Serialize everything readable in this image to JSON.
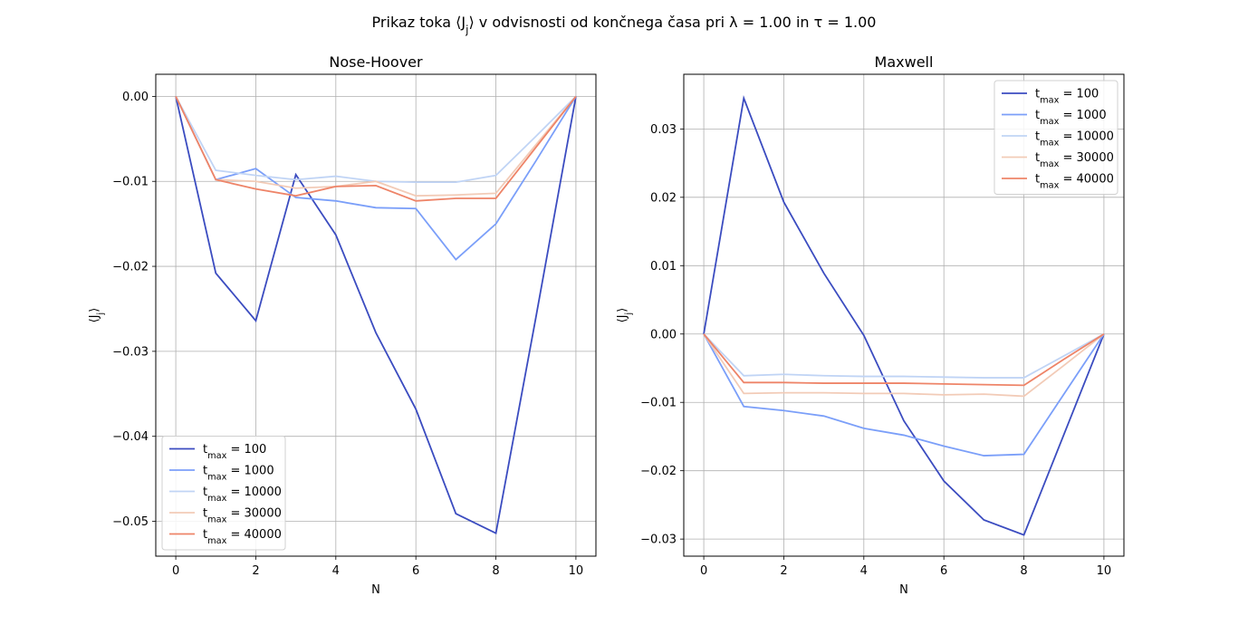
{
  "figure": {
    "suptitle": "Prikaz toka ⟨J_j⟩ v odvisnosti od končnega časa pri λ = 1.00 in τ = 1.00"
  },
  "chart_data": [
    {
      "type": "line",
      "title": "Nose-Hoover",
      "xlabel": "N",
      "ylabel": "⟨J_j⟩",
      "xlim": [
        -0.5,
        10.5
      ],
      "ylim": [
        -0.0541,
        0.0026
      ],
      "xticks": [
        0,
        2,
        4,
        6,
        8,
        10
      ],
      "yticks": [
        0.0,
        -0.01,
        -0.02,
        -0.03,
        -0.04,
        -0.05
      ],
      "ytick_labels": [
        "0.00",
        "−0.01",
        "−0.02",
        "−0.03",
        "−0.04",
        "−0.05"
      ],
      "grid": true,
      "legend_position": "lower-left",
      "x": [
        0,
        1,
        2,
        3,
        4,
        5,
        6,
        7,
        8,
        9,
        10
      ],
      "series": [
        {
          "name": "t_max = 100",
          "color": "#3b4cc0",
          "values": [
            0.0,
            -0.0208,
            -0.0264,
            -0.0092,
            -0.0163,
            -0.0278,
            -0.0368,
            -0.0491,
            -0.0514,
            -0.026,
            0.0
          ]
        },
        {
          "name": "t_max = 1000",
          "color": "#7b9ff9",
          "values": [
            0.0,
            -0.0098,
            -0.0085,
            -0.0119,
            -0.0123,
            -0.0131,
            -0.0132,
            -0.0192,
            -0.015,
            -0.0076,
            0.0
          ]
        },
        {
          "name": "t_max = 10000",
          "color": "#c0d4f5",
          "values": [
            0.0,
            -0.0087,
            -0.0093,
            -0.0098,
            -0.0094,
            -0.01,
            -0.0101,
            -0.0101,
            -0.0093,
            -0.0047,
            0.0
          ]
        },
        {
          "name": "t_max = 30000",
          "color": "#f2cbb7",
          "values": [
            0.0,
            -0.0098,
            -0.01,
            -0.0108,
            -0.0106,
            -0.01,
            -0.0117,
            -0.0116,
            -0.0114,
            -0.0057,
            0.0
          ]
        },
        {
          "name": "t_max = 40000",
          "color": "#ee8468",
          "values": [
            0.0,
            -0.0098,
            -0.0109,
            -0.0117,
            -0.0106,
            -0.0105,
            -0.0123,
            -0.012,
            -0.012,
            -0.006,
            0.0
          ]
        }
      ]
    },
    {
      "type": "line",
      "title": "Maxwell",
      "xlabel": "N",
      "ylabel": "⟨J_j⟩",
      "xlim": [
        -0.5,
        10.5
      ],
      "ylim": [
        -0.0325,
        0.038
      ],
      "xticks": [
        0,
        2,
        4,
        6,
        8,
        10
      ],
      "yticks": [
        0.03,
        0.02,
        0.01,
        0.0,
        -0.01,
        -0.02,
        -0.03
      ],
      "ytick_labels": [
        "0.03",
        "0.02",
        "0.01",
        "0.00",
        "−0.01",
        "−0.02",
        "−0.03"
      ],
      "grid": true,
      "legend_position": "upper-right",
      "x": [
        0,
        1,
        2,
        3,
        4,
        5,
        6,
        7,
        8,
        9,
        10
      ],
      "series": [
        {
          "name": "t_max = 100",
          "color": "#3b4cc0",
          "values": [
            0.0,
            0.0345,
            0.0193,
            0.0089,
            -0.0002,
            -0.0127,
            -0.0215,
            -0.0272,
            -0.0294,
            -0.0147,
            0.0
          ]
        },
        {
          "name": "t_max = 1000",
          "color": "#7b9ff9",
          "values": [
            0.0,
            -0.0106,
            -0.0112,
            -0.012,
            -0.0138,
            -0.0148,
            -0.0164,
            -0.0178,
            -0.0176,
            -0.0088,
            0.0
          ]
        },
        {
          "name": "t_max = 10000",
          "color": "#c0d4f5",
          "values": [
            0.0,
            -0.0061,
            -0.0059,
            -0.0061,
            -0.0062,
            -0.0062,
            -0.0063,
            -0.0064,
            -0.0064,
            -0.0032,
            0.0
          ]
        },
        {
          "name": "t_max = 30000",
          "color": "#f2cbb7",
          "values": [
            0.0,
            -0.0087,
            -0.0086,
            -0.0086,
            -0.0087,
            -0.0087,
            -0.0089,
            -0.0088,
            -0.0091,
            -0.0046,
            0.0
          ]
        },
        {
          "name": "t_max = 40000",
          "color": "#ee8468",
          "values": [
            0.0,
            -0.0071,
            -0.0071,
            -0.0072,
            -0.0072,
            -0.0072,
            -0.0073,
            -0.0074,
            -0.0075,
            -0.0037,
            0.0
          ]
        }
      ]
    }
  ]
}
